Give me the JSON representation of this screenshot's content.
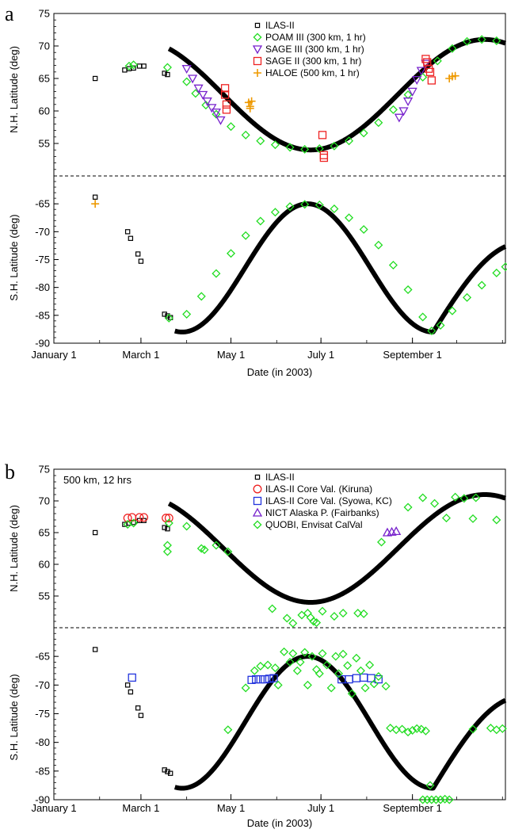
{
  "chart_data": [
    {
      "type": "scatter",
      "panel_label": "a",
      "xlabel": "Date (in 2003)",
      "x_ticks": [
        "January 1",
        "March 1",
        "May 1",
        "July 1",
        "September 1"
      ],
      "x_tick_days": [
        0,
        59,
        120,
        181,
        243
      ],
      "xlim_days": [
        0,
        306
      ],
      "annotation": "",
      "nh": {
        "ylabel": "N.H. Latitude (deg)",
        "ylim": [
          50,
          75
        ],
        "yticks": [
          55,
          60,
          65,
          70,
          75
        ]
      },
      "sh": {
        "ylabel": "S.H. Latitude (deg)",
        "ylim": [
          -90,
          -60
        ],
        "yticks": [
          -65,
          -70,
          -75,
          -80,
          -85,
          -90
        ]
      },
      "orbit": {
        "nh": {
          "start_day": 78,
          "end_day": 306,
          "min_lat": 54,
          "min_day": 174,
          "max_lat": 71,
          "max_day": 292
        },
        "sh": {
          "start_day": 82,
          "end_day": 306,
          "max_lat": -65,
          "max_day": 172,
          "min_lat": -88,
          "min_day": 257
        }
      },
      "legend": [
        {
          "key": "ilas",
          "label": "ILAS-II",
          "marker": "square-small",
          "color": "#000000"
        },
        {
          "key": "poam",
          "label": "POAM III (300 km, 1 hr)",
          "marker": "diamond",
          "color": "#22dd22"
        },
        {
          "key": "sage3",
          "label": "SAGE III (300 km, 1 hr)",
          "marker": "triangle-down",
          "color": "#7722cc"
        },
        {
          "key": "sage2",
          "label": "SAGE II (300 km, 1 hr)",
          "marker": "square",
          "color": "#ee2222"
        },
        {
          "key": "haloe",
          "label": "HALOE (500 km, 1 hr)",
          "marker": "plus",
          "color": "#ee9900"
        }
      ],
      "series": [
        {
          "key": "ilas",
          "points": [
            [
              28,
              65
            ],
            [
              28,
              -63.8
            ],
            [
              48,
              66.3
            ],
            [
              51,
              66.5
            ],
            [
              54,
              66.6
            ],
            [
              58,
              66.9
            ],
            [
              61,
              66.9
            ],
            [
              75,
              65.8
            ],
            [
              77,
              65.6
            ],
            [
              50,
              -70
            ],
            [
              52,
              -71.2
            ],
            [
              57,
              -74
            ],
            [
              59,
              -75.3
            ],
            [
              75,
              -84.8
            ],
            [
              77,
              -85.1
            ],
            [
              79,
              -85.4
            ]
          ]
        },
        {
          "key": "poam",
          "points": [
            [
              51,
              66.9
            ],
            [
              54,
              67.1
            ],
            [
              77,
              66.7
            ],
            [
              90,
              64.5
            ],
            [
              96,
              62.7
            ],
            [
              103,
              60.9
            ],
            [
              110,
              59.5
            ],
            [
              120,
              57.6
            ],
            [
              130,
              56.3
            ],
            [
              140,
              55.4
            ],
            [
              150,
              54.8
            ],
            [
              160,
              54.4
            ],
            [
              170,
              54.1
            ],
            [
              180,
              54.2
            ],
            [
              190,
              54.6
            ],
            [
              200,
              55.4
            ],
            [
              210,
              56.6
            ],
            [
              220,
              58.2
            ],
            [
              230,
              60.2
            ],
            [
              240,
              62.5
            ],
            [
              250,
              65.2
            ],
            [
              260,
              67.7
            ],
            [
              270,
              69.6
            ],
            [
              280,
              70.7
            ],
            [
              290,
              71
            ],
            [
              300,
              70.8
            ],
            [
              78,
              -85.5
            ],
            [
              90,
              -84.8
            ],
            [
              100,
              -81.6
            ],
            [
              110,
              -77.5
            ],
            [
              120,
              -73.9
            ],
            [
              130,
              -70.7
            ],
            [
              140,
              -68.1
            ],
            [
              150,
              -66.5
            ],
            [
              160,
              -65.5
            ],
            [
              170,
              -65.1
            ],
            [
              180,
              -65.2
            ],
            [
              190,
              -65.9
            ],
            [
              200,
              -67.5
            ],
            [
              210,
              -69.6
            ],
            [
              220,
              -72.4
            ],
            [
              230,
              -76
            ],
            [
              240,
              -80.4
            ],
            [
              250,
              -85.3
            ],
            [
              256,
              -87.8
            ],
            [
              262,
              -86.8
            ],
            [
              270,
              -84.2
            ],
            [
              280,
              -81.8
            ],
            [
              290,
              -79.6
            ],
            [
              300,
              -77.4
            ],
            [
              306,
              -76.3
            ]
          ]
        },
        {
          "key": "sage3",
          "points": [
            [
              90,
              66.5
            ],
            [
              94,
              65
            ],
            [
              98,
              63.5
            ],
            [
              101,
              62.5
            ],
            [
              104,
              61.5
            ],
            [
              107,
              60.5
            ],
            [
              110,
              59.8
            ],
            [
              113,
              58.6
            ],
            [
              234,
              59
            ],
            [
              237,
              60
            ],
            [
              240,
              61.5
            ],
            [
              243,
              63
            ],
            [
              246,
              64.8
            ],
            [
              249,
              66.2
            ],
            [
              252,
              67.3
            ]
          ]
        },
        {
          "key": "sage2",
          "points": [
            [
              116,
              63.5
            ],
            [
              116,
              62.5
            ],
            [
              117,
              61
            ],
            [
              117,
              60.2
            ],
            [
              182,
              56.3
            ],
            [
              183,
              53.2
            ],
            [
              183,
              52.8
            ],
            [
              252,
              68
            ],
            [
              253,
              67.5
            ],
            [
              254,
              66.5
            ],
            [
              255,
              66
            ],
            [
              256,
              64.7
            ]
          ]
        },
        {
          "key": "haloe",
          "points": [
            [
              28,
              -65
            ],
            [
              132,
              61.3
            ],
            [
              133,
              60.7
            ],
            [
              133,
              60.4
            ],
            [
              134,
              61.5
            ],
            [
              268,
              65
            ],
            [
              270,
              65.3
            ],
            [
              272,
              65.4
            ]
          ]
        }
      ]
    },
    {
      "type": "scatter",
      "panel_label": "b",
      "xlabel": "Date (in 2003)",
      "x_ticks": [
        "January 1",
        "March 1",
        "May 1",
        "July 1",
        "September 1"
      ],
      "x_tick_days": [
        0,
        59,
        120,
        181,
        243
      ],
      "xlim_days": [
        0,
        306
      ],
      "annotation": "500 km, 12 hrs",
      "nh": {
        "ylabel": "N.H. Latitude (deg)",
        "ylim": [
          50,
          75
        ],
        "yticks": [
          55,
          60,
          65,
          70,
          75
        ]
      },
      "sh": {
        "ylabel": "S.H. Latitude (deg)",
        "ylim": [
          -90,
          -60
        ],
        "yticks": [
          -65,
          -70,
          -75,
          -80,
          -85,
          -90
        ]
      },
      "orbit": {
        "nh": {
          "start_day": 78,
          "end_day": 306,
          "min_lat": 54,
          "min_day": 174,
          "max_lat": 71,
          "max_day": 292
        },
        "sh": {
          "start_day": 82,
          "end_day": 306,
          "max_lat": -65,
          "max_day": 172,
          "min_lat": -88,
          "min_day": 257
        }
      },
      "legend": [
        {
          "key": "ilas",
          "label": "ILAS-II",
          "marker": "square-small",
          "color": "#000000"
        },
        {
          "key": "kiruna",
          "label": "ILAS-II Core Val. (Kiruna)",
          "marker": "circle",
          "color": "#ee2222"
        },
        {
          "key": "syowa",
          "label": "ILAS-II Core Val. (Syowa, KC)",
          "marker": "square",
          "color": "#2233dd"
        },
        {
          "key": "nict",
          "label": "NICT Alaska P. (Fairbanks)",
          "marker": "triangle-up",
          "color": "#7722cc"
        },
        {
          "key": "quobi",
          "label": "QUOBI, Envisat CalVal",
          "marker": "diamond",
          "color": "#22dd22"
        }
      ],
      "series": [
        {
          "key": "ilas",
          "points": [
            [
              28,
              65
            ],
            [
              28,
              -63.8
            ],
            [
              48,
              66.3
            ],
            [
              51,
              66.5
            ],
            [
              54,
              66.6
            ],
            [
              58,
              66.9
            ],
            [
              61,
              66.9
            ],
            [
              75,
              65.8
            ],
            [
              77,
              65.6
            ],
            [
              50,
              -70
            ],
            [
              52,
              -71.2
            ],
            [
              57,
              -74
            ],
            [
              59,
              -75.3
            ],
            [
              75,
              -84.8
            ],
            [
              77,
              -85.1
            ],
            [
              79,
              -85.4
            ]
          ]
        },
        {
          "key": "kiruna",
          "points": [
            [
              50,
              67.3
            ],
            [
              53,
              67.4
            ],
            [
              58,
              67.4
            ],
            [
              61,
              67.4
            ],
            [
              76,
              67.3
            ],
            [
              78,
              67.3
            ]
          ]
        },
        {
          "key": "syowa",
          "points": [
            [
              53,
              -68.7
            ],
            [
              134,
              -69.1
            ],
            [
              137,
              -69
            ],
            [
              140,
              -69
            ],
            [
              143,
              -69
            ],
            [
              146,
              -68.9
            ],
            [
              149,
              -68.8
            ],
            [
              195,
              -69
            ],
            [
              200,
              -69
            ],
            [
              205,
              -68.8
            ],
            [
              210,
              -68.7
            ],
            [
              215,
              -68.8
            ],
            [
              220,
              -69
            ]
          ]
        },
        {
          "key": "nict",
          "points": [
            [
              226,
              65
            ],
            [
              229,
              65.1
            ],
            [
              232,
              65.2
            ]
          ]
        },
        {
          "key": "quobi",
          "points": [
            [
              50,
              66.3
            ],
            [
              54,
              66.5
            ],
            [
              77,
              62
            ],
            [
              77,
              63
            ],
            [
              78,
              66.5
            ],
            [
              90,
              66
            ],
            [
              100,
              62.5
            ],
            [
              102,
              62.3
            ],
            [
              110,
              63
            ],
            [
              118,
              62
            ],
            [
              148,
              53
            ],
            [
              158,
              51.5
            ],
            [
              162,
              50.7
            ],
            [
              168,
              52
            ],
            [
              172,
              52.3
            ],
            [
              174,
              51.6
            ],
            [
              176,
              51
            ],
            [
              178,
              50.8
            ],
            [
              182,
              52.6
            ],
            [
              190,
              51.8
            ],
            [
              196,
              52.3
            ],
            [
              206,
              52.3
            ],
            [
              210,
              52.2
            ],
            [
              222,
              63.5
            ],
            [
              240,
              69
            ],
            [
              250,
              70.5
            ],
            [
              258,
              69.6
            ],
            [
              266,
              67.3
            ],
            [
              272,
              70.6
            ],
            [
              278,
              70.4
            ],
            [
              284,
              67.2
            ],
            [
              286,
              70.5
            ],
            [
              300,
              67
            ],
            [
              118,
              -77.8
            ],
            [
              130,
              -70.5
            ],
            [
              136,
              -67.5
            ],
            [
              140,
              -66.7
            ],
            [
              145,
              -66.5
            ],
            [
              150,
              -67
            ],
            [
              152,
              -70
            ],
            [
              156,
              -64.2
            ],
            [
              160,
              -66
            ],
            [
              162,
              -64.5
            ],
            [
              165,
              -67.5
            ],
            [
              167,
              -66
            ],
            [
              170,
              -64.3
            ],
            [
              172,
              -70
            ],
            [
              175,
              -65
            ],
            [
              178,
              -67.3
            ],
            [
              180,
              -68
            ],
            [
              182,
              -64.5
            ],
            [
              185,
              -66.5
            ],
            [
              188,
              -70.5
            ],
            [
              191,
              -65
            ],
            [
              193,
              -68
            ],
            [
              196,
              -64.6
            ],
            [
              199,
              -66.6
            ],
            [
              202,
              -71.5
            ],
            [
              205,
              -65.3
            ],
            [
              208,
              -67.5
            ],
            [
              211,
              -70.5
            ],
            [
              214,
              -66.5
            ],
            [
              217,
              -69.8
            ],
            [
              220,
              -68.5
            ],
            [
              225,
              -70.2
            ],
            [
              228,
              -77.5
            ],
            [
              232,
              -77.8
            ],
            [
              236,
              -77.7
            ],
            [
              240,
              -78.2
            ],
            [
              243,
              -77.9
            ],
            [
              246,
              -77.6
            ],
            [
              249,
              -77.7
            ],
            [
              252,
              -78
            ],
            [
              255,
              -87.5
            ],
            [
              250,
              -90
            ],
            [
              253,
              -90
            ],
            [
              256,
              -90
            ],
            [
              259,
              -90
            ],
            [
              262,
              -90
            ],
            [
              265,
              -89.9
            ],
            [
              268,
              -90
            ],
            [
              284,
              -77.7
            ],
            [
              296,
              -77.5
            ],
            [
              300,
              -77.8
            ],
            [
              304,
              -77.6
            ]
          ]
        }
      ]
    }
  ]
}
